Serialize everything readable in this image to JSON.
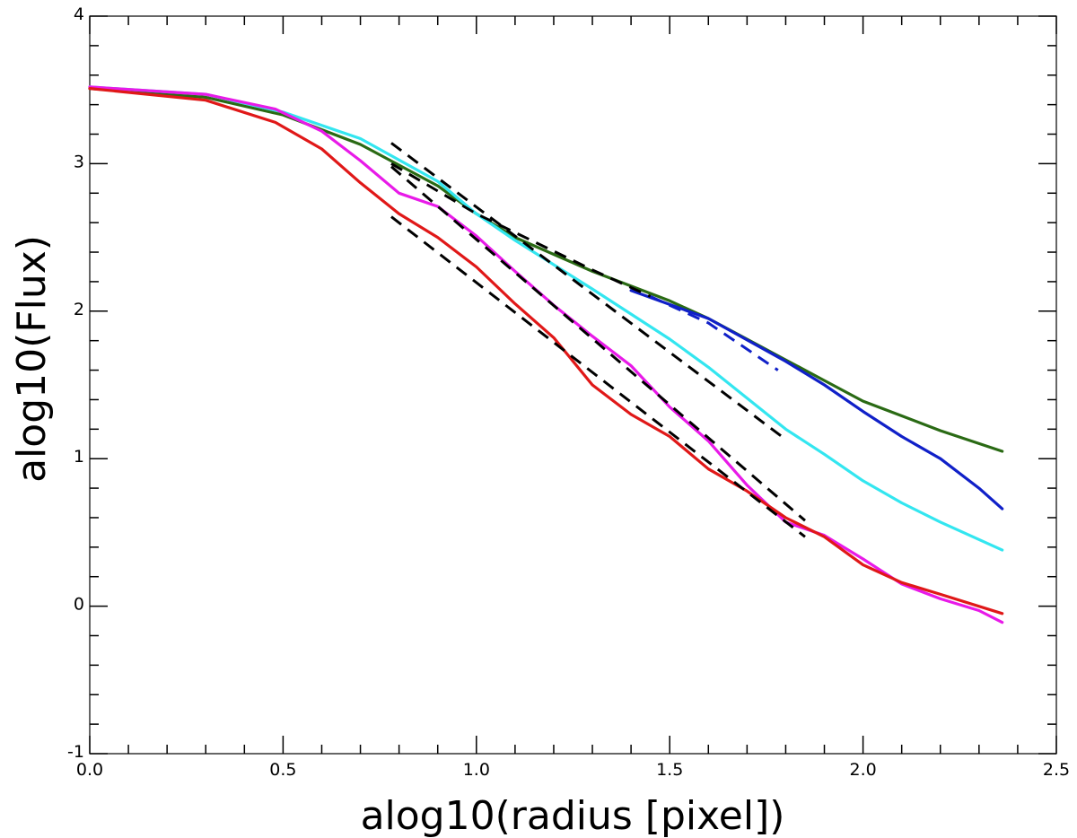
{
  "chart_data": {
    "type": "line",
    "title": "",
    "xlabel": "alog10(radius [pixel])",
    "ylabel": "alog10(Flux)",
    "xlim": [
      0.0,
      2.5
    ],
    "ylim": [
      -1,
      4
    ],
    "x_major_ticks": [
      0.0,
      0.5,
      1.0,
      1.5,
      2.0,
      2.5
    ],
    "x_tick_labels": [
      "0.0",
      "0.5",
      "1.0",
      "1.5",
      "2.0",
      "2.5"
    ],
    "x_minor_step": 0.1,
    "y_major_ticks": [
      -1,
      0,
      1,
      2,
      3,
      4
    ],
    "y_tick_labels": [
      "-1",
      "0",
      "1",
      "2",
      "3",
      "4"
    ],
    "y_minor_step": 0.2,
    "grid": false,
    "legend": "none",
    "series": [
      {
        "color": "#2a6a14",
        "style": "solid",
        "points": [
          [
            0.0,
            3.51
          ],
          [
            0.3,
            3.45
          ],
          [
            0.5,
            3.33
          ],
          [
            0.7,
            3.13
          ],
          [
            0.9,
            2.85
          ],
          [
            1.0,
            2.66
          ],
          [
            1.1,
            2.5
          ],
          [
            1.3,
            2.27
          ],
          [
            1.5,
            2.07
          ],
          [
            1.6,
            1.95
          ],
          [
            1.8,
            1.67
          ],
          [
            1.9,
            1.53
          ],
          [
            2.0,
            1.39
          ],
          [
            2.1,
            1.29
          ],
          [
            2.2,
            1.19
          ],
          [
            2.36,
            1.05
          ]
        ]
      },
      {
        "color": "#1020c8",
        "style": "solid",
        "points": [
          [
            1.4,
            2.14
          ],
          [
            1.6,
            1.95
          ],
          [
            1.8,
            1.66
          ],
          [
            1.9,
            1.5
          ],
          [
            2.0,
            1.32
          ],
          [
            2.1,
            1.15
          ],
          [
            2.2,
            1.0
          ],
          [
            2.3,
            0.8
          ],
          [
            2.36,
            0.66
          ]
        ]
      },
      {
        "color": "#33e6f0",
        "style": "solid",
        "points": [
          [
            0.0,
            3.52
          ],
          [
            0.3,
            3.47
          ],
          [
            0.5,
            3.35
          ],
          [
            0.7,
            3.17
          ],
          [
            0.9,
            2.88
          ],
          [
            1.0,
            2.66
          ],
          [
            1.1,
            2.48
          ],
          [
            1.3,
            2.15
          ],
          [
            1.5,
            1.81
          ],
          [
            1.6,
            1.62
          ],
          [
            1.8,
            1.2
          ],
          [
            1.9,
            1.03
          ],
          [
            2.0,
            0.85
          ],
          [
            2.1,
            0.7
          ],
          [
            2.2,
            0.57
          ],
          [
            2.36,
            0.38
          ]
        ]
      },
      {
        "color": "#e81ae8",
        "style": "solid",
        "points": [
          [
            0.0,
            3.52
          ],
          [
            0.3,
            3.47
          ],
          [
            0.48,
            3.37
          ],
          [
            0.6,
            3.22
          ],
          [
            0.7,
            3.02
          ],
          [
            0.8,
            2.8
          ],
          [
            0.9,
            2.71
          ],
          [
            1.0,
            2.51
          ],
          [
            1.1,
            2.27
          ],
          [
            1.2,
            2.04
          ],
          [
            1.3,
            1.83
          ],
          [
            1.4,
            1.63
          ],
          [
            1.5,
            1.35
          ],
          [
            1.6,
            1.12
          ],
          [
            1.7,
            0.82
          ],
          [
            1.8,
            0.57
          ],
          [
            1.9,
            0.48
          ],
          [
            2.0,
            0.32
          ],
          [
            2.1,
            0.15
          ],
          [
            2.2,
            0.05
          ],
          [
            2.3,
            -0.03
          ],
          [
            2.36,
            -0.11
          ]
        ]
      },
      {
        "color": "#e01818",
        "style": "solid",
        "points": [
          [
            0.0,
            3.51
          ],
          [
            0.3,
            3.43
          ],
          [
            0.48,
            3.28
          ],
          [
            0.6,
            3.1
          ],
          [
            0.7,
            2.87
          ],
          [
            0.8,
            2.66
          ],
          [
            0.9,
            2.5
          ],
          [
            1.0,
            2.3
          ],
          [
            1.1,
            2.05
          ],
          [
            1.2,
            1.82
          ],
          [
            1.3,
            1.5
          ],
          [
            1.4,
            1.3
          ],
          [
            1.5,
            1.15
          ],
          [
            1.6,
            0.93
          ],
          [
            1.7,
            0.78
          ],
          [
            1.8,
            0.6
          ],
          [
            1.9,
            0.47
          ],
          [
            2.0,
            0.28
          ],
          [
            2.1,
            0.16
          ],
          [
            2.2,
            0.08
          ],
          [
            2.36,
            -0.05
          ]
        ]
      },
      {
        "color": "#000000",
        "style": "dashed",
        "points": [
          [
            0.78,
            3.0
          ],
          [
            1.0,
            2.66
          ],
          [
            1.3,
            2.28
          ],
          [
            1.45,
            2.1
          ]
        ]
      },
      {
        "color": "#1020c8",
        "style": "dashed",
        "points": [
          [
            1.45,
            2.1
          ],
          [
            1.6,
            1.92
          ],
          [
            1.78,
            1.6
          ]
        ]
      },
      {
        "color": "#000000",
        "style": "dashed",
        "points": [
          [
            0.78,
            3.14
          ],
          [
            1.8,
            1.13
          ]
        ]
      },
      {
        "color": "#000000",
        "style": "dashed",
        "points": [
          [
            0.78,
            2.98
          ],
          [
            1.85,
            0.58
          ]
        ]
      },
      {
        "color": "#000000",
        "style": "dashed",
        "points": [
          [
            0.78,
            2.64
          ],
          [
            1.85,
            0.47
          ]
        ]
      }
    ]
  }
}
